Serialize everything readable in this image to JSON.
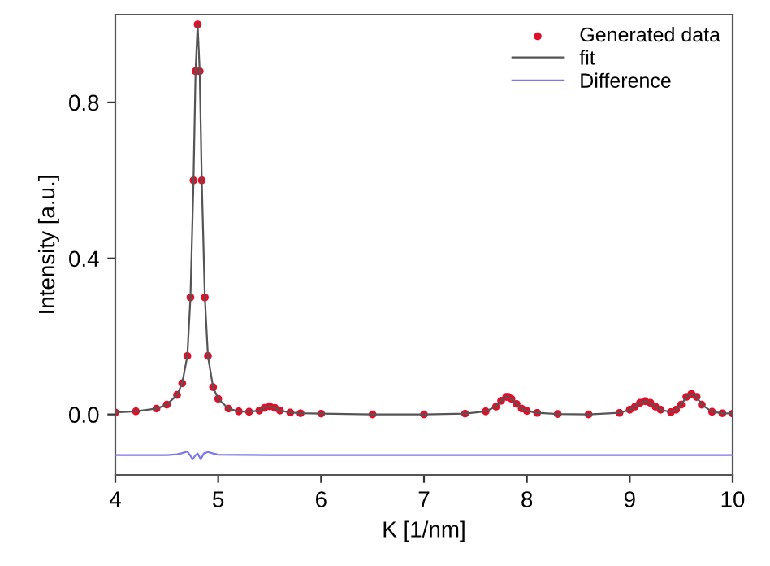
{
  "chart_data": {
    "type": "line",
    "xlabel": "K [1/nm]",
    "ylabel": "Intensity [a.u.]",
    "xlim": [
      4,
      10
    ],
    "xticks": [
      4,
      5,
      6,
      7,
      8,
      9,
      10
    ],
    "ylim": [
      -0.155,
      1.025
    ],
    "yticks": [
      {
        "value": 0,
        "label": "0.0"
      },
      {
        "value": 0.4,
        "label": "0.4"
      },
      {
        "value": 0.8,
        "label": "0.8"
      }
    ],
    "grid": false,
    "legend": "top right",
    "series": [
      {
        "name": "Generated data",
        "type": "scatter",
        "marker": "circle",
        "color": "#e0102a",
        "x": [
          4.0,
          4.2,
          4.4,
          4.5,
          4.6,
          4.65,
          4.7,
          4.73,
          4.76,
          4.78,
          4.8,
          4.82,
          4.84,
          4.87,
          4.9,
          4.95,
          5.0,
          5.1,
          5.2,
          5.3,
          5.4,
          5.45,
          5.5,
          5.55,
          5.6,
          5.7,
          5.8,
          6.0,
          6.5,
          7.0,
          7.4,
          7.6,
          7.7,
          7.75,
          7.8,
          7.82,
          7.85,
          7.9,
          7.95,
          8.0,
          8.1,
          8.3,
          8.6,
          8.9,
          9.0,
          9.05,
          9.1,
          9.15,
          9.2,
          9.25,
          9.3,
          9.4,
          9.45,
          9.5,
          9.55,
          9.6,
          9.65,
          9.7,
          9.8,
          9.9,
          10.0
        ],
        "values": [
          0.005,
          0.008,
          0.015,
          0.025,
          0.05,
          0.08,
          0.15,
          0.3,
          0.6,
          0.88,
          1.0,
          0.88,
          0.6,
          0.3,
          0.15,
          0.07,
          0.04,
          0.015,
          0.008,
          0.007,
          0.01,
          0.017,
          0.021,
          0.017,
          0.01,
          0.005,
          0.003,
          0.002,
          0.0,
          0.0,
          0.002,
          0.008,
          0.02,
          0.035,
          0.045,
          0.045,
          0.04,
          0.027,
          0.015,
          0.009,
          0.004,
          0.001,
          0.0,
          0.004,
          0.012,
          0.02,
          0.03,
          0.034,
          0.03,
          0.02,
          0.012,
          0.006,
          0.012,
          0.025,
          0.045,
          0.053,
          0.045,
          0.025,
          0.007,
          0.003,
          0.002
        ]
      },
      {
        "name": "fit",
        "color": "#555555",
        "line_style": "solid",
        "x": [
          4.0,
          4.2,
          4.4,
          4.5,
          4.6,
          4.65,
          4.7,
          4.73,
          4.76,
          4.78,
          4.8,
          4.82,
          4.84,
          4.87,
          4.9,
          4.95,
          5.0,
          5.1,
          5.2,
          5.3,
          5.4,
          5.45,
          5.5,
          5.55,
          5.6,
          5.7,
          5.8,
          6.0,
          6.5,
          7.0,
          7.4,
          7.6,
          7.7,
          7.75,
          7.8,
          7.82,
          7.85,
          7.9,
          7.95,
          8.0,
          8.1,
          8.3,
          8.6,
          8.9,
          9.0,
          9.05,
          9.1,
          9.15,
          9.2,
          9.25,
          9.3,
          9.4,
          9.45,
          9.5,
          9.55,
          9.6,
          9.65,
          9.7,
          9.8,
          9.9,
          10.0
        ],
        "values": [
          0.005,
          0.008,
          0.015,
          0.025,
          0.05,
          0.08,
          0.15,
          0.3,
          0.6,
          0.88,
          1.0,
          0.88,
          0.6,
          0.3,
          0.15,
          0.07,
          0.04,
          0.015,
          0.008,
          0.007,
          0.01,
          0.017,
          0.021,
          0.017,
          0.01,
          0.005,
          0.003,
          0.002,
          0.0,
          0.0,
          0.002,
          0.008,
          0.02,
          0.035,
          0.045,
          0.045,
          0.04,
          0.027,
          0.015,
          0.009,
          0.004,
          0.001,
          0.0,
          0.004,
          0.012,
          0.02,
          0.03,
          0.034,
          0.03,
          0.02,
          0.012,
          0.006,
          0.012,
          0.025,
          0.045,
          0.053,
          0.045,
          0.025,
          0.007,
          0.003,
          0.002
        ]
      },
      {
        "name": "Difference",
        "color": "#7a7ae8",
        "line_style": "solid",
        "x": [
          4.0,
          4.5,
          4.6,
          4.65,
          4.7,
          4.73,
          4.75,
          4.78,
          4.8,
          4.83,
          4.86,
          4.9,
          4.95,
          5.0,
          5.5,
          6.0,
          7.0,
          8.0,
          9.0,
          10.0
        ],
        "values": [
          -0.104,
          -0.104,
          -0.102,
          -0.099,
          -0.095,
          -0.106,
          -0.115,
          -0.104,
          -0.1,
          -0.115,
          -0.1,
          -0.096,
          -0.1,
          -0.103,
          -0.104,
          -0.104,
          -0.104,
          -0.104,
          -0.104,
          -0.104
        ]
      }
    ]
  }
}
